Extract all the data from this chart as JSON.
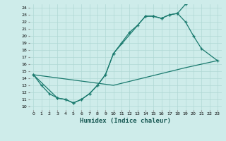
{
  "xlabel": "Humidex (Indice chaleur)",
  "bg_color": "#ceecea",
  "grid_color": "#b0d8d5",
  "line_color": "#1a7a6e",
  "xlim": [
    -0.5,
    23.5
  ],
  "ylim": [
    9.5,
    24.5
  ],
  "xticks": [
    0,
    1,
    2,
    3,
    4,
    5,
    6,
    7,
    8,
    9,
    10,
    11,
    12,
    13,
    14,
    15,
    16,
    17,
    18,
    19,
    20,
    21,
    22,
    23
  ],
  "yticks": [
    10,
    11,
    12,
    13,
    14,
    15,
    16,
    17,
    18,
    19,
    20,
    21,
    22,
    23,
    24
  ],
  "line1_x": [
    0,
    1,
    2,
    3,
    4,
    5,
    6,
    7,
    8,
    9,
    10,
    11,
    12,
    13,
    14,
    15,
    16,
    17,
    18,
    19
  ],
  "line1_y": [
    14.5,
    13.0,
    11.8,
    11.2,
    11.0,
    10.5,
    11.0,
    11.8,
    13.0,
    14.5,
    17.5,
    19.0,
    20.5,
    21.5,
    22.8,
    22.8,
    22.5,
    23.0,
    23.2,
    24.5
  ],
  "line2_x": [
    0,
    3,
    4,
    5,
    6,
    7,
    8,
    9,
    10,
    14,
    15,
    16,
    17,
    18,
    19,
    20,
    21,
    23
  ],
  "line2_y": [
    14.5,
    11.2,
    11.0,
    10.5,
    11.0,
    11.8,
    13.0,
    14.5,
    17.5,
    22.8,
    22.8,
    22.5,
    23.0,
    23.2,
    22.0,
    20.0,
    18.2,
    16.5
  ],
  "line3_x": [
    0,
    10,
    19,
    23
  ],
  "line3_y": [
    14.5,
    13.0,
    15.5,
    16.5
  ]
}
